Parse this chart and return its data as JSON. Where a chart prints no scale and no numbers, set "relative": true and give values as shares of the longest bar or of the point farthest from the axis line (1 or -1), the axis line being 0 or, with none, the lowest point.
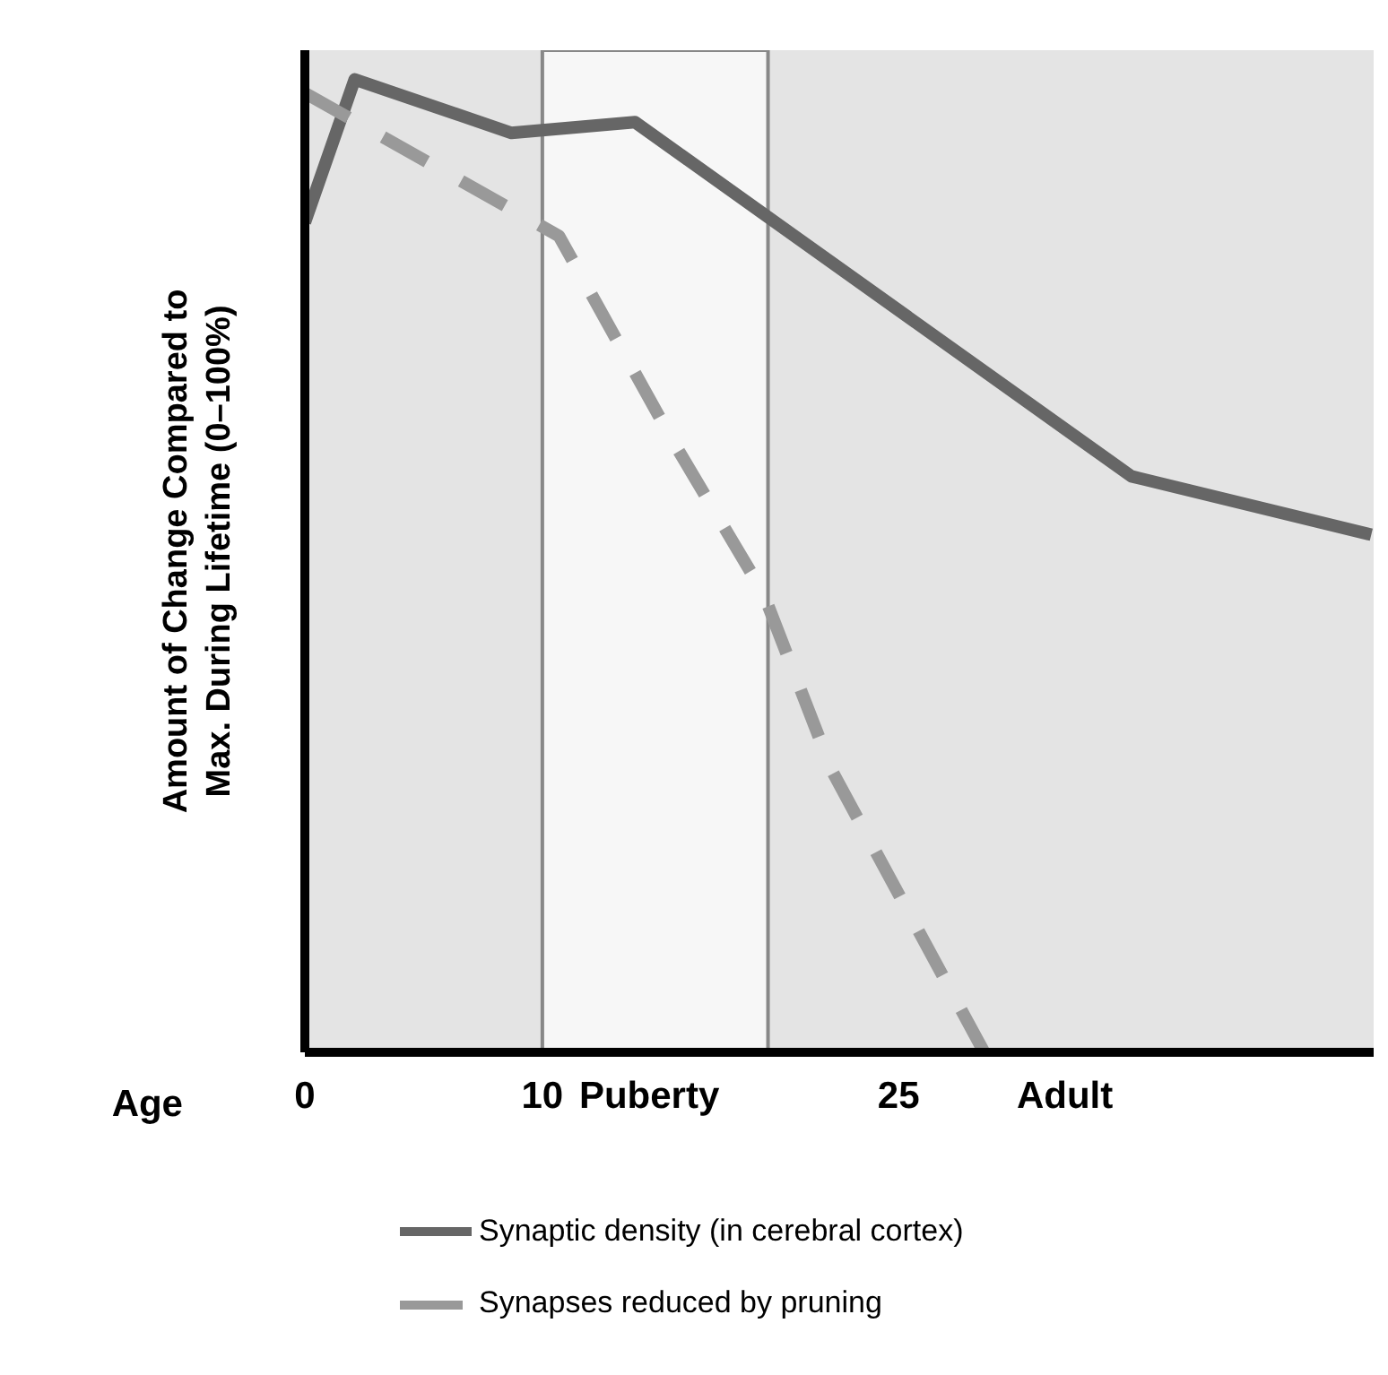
{
  "chart_data": {
    "type": "line",
    "relative": true,
    "xlabel": "Age",
    "ylabel": "Amount of Change Compared to Max. During Lifetime (0–100%)",
    "xlim": [
      0,
      45
    ],
    "xticks": [
      0,
      10,
      {
        "value": 14.5,
        "label": "Puberty"
      },
      25,
      {
        "value": 32,
        "label": "Adult"
      }
    ],
    "series": [
      {
        "name": "Synaptic density (in cerebral cortex)",
        "color": "#666666",
        "line_style": "solid",
        "x": [
          0,
          2.1,
          8.7,
          13.9,
          34.8,
          44.9
        ],
        "values": [
          0.853,
          1,
          0.945,
          0.956,
          0.592,
          0.532
        ]
      },
      {
        "name": "Synapses reduced by pruning",
        "color": "#999999",
        "line_style": "dashed",
        "x": [
          0,
          10.7,
          15.5,
          19.3,
          22.2,
          28.6
        ],
        "values": [
          0.986,
          0.839,
          0.628,
          0.472,
          0.289,
          0
        ]
      }
    ],
    "bands": [
      {
        "axis": "x",
        "from": 10,
        "to": 19.5,
        "color": "#f7f7f7"
      }
    ],
    "grid": false,
    "marker": "none",
    "legend": "bottom"
  }
}
